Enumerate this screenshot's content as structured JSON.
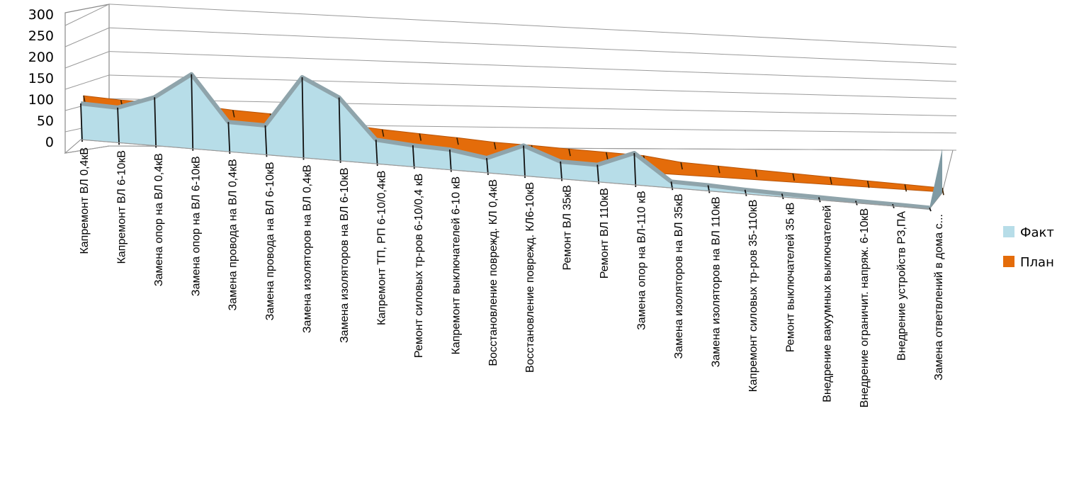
{
  "chart_data": {
    "type": "area",
    "style": "3d",
    "categories": [
      "Капремонт ВЛ 0,4кВ",
      "Капремонт ВЛ 6-10кВ",
      "Замена опор на ВЛ 0,4кВ",
      "Замена опор на ВЛ 6-10кВ",
      "Замена провода на ВЛ 0,4кВ",
      "Замена провода на ВЛ 6-10кВ",
      "Замена изоляторов на ВЛ 0,4кВ",
      "Замена изоляторов на ВЛ 6-10кВ",
      "Капремонт ТП, РП 6-10/0,4кВ",
      "Ремонт силовых тр-ров 6-10/0,4 кВ",
      "Капремонт выключателей  6-10 кВ",
      "Восстановление поврежд. КЛ 0,4кВ",
      "Восстановление поврежд. КЛ6-10кВ",
      "Ремонт ВЛ  35кВ",
      "Ремонт ВЛ  110кВ",
      "Замена опор на  ВЛ-110 кВ",
      "Замена изоляторов на ВЛ 35кВ",
      "Замена изоляторов на ВЛ 110кВ",
      "Капремонт силовых тр-ров 35-110кВ",
      "Ремонт выключателей  35 кВ",
      "Внедрение  вакуумных  выключателей",
      "Внедрение ограничит. напряж. 6-10кВ",
      "Внедрение устройств РЗ,ПА",
      "Замена ответвлений в дома с..."
    ],
    "series": [
      {
        "name": "Факт",
        "color": "#b7dde8",
        "values": [
          102,
          100,
          140,
          218,
          88,
          88,
          245,
          195,
          75,
          68,
          65,
          48,
          100,
          58,
          58,
          110,
          22,
          20,
          15,
          12,
          10,
          8,
          7,
          5
        ]
      },
      {
        "name": "План",
        "color": "#e46c0a",
        "values": [
          112,
          108,
          108,
          110,
          104,
          102,
          90,
          87,
          80,
          76,
          72,
          66,
          65,
          62,
          60,
          58,
          44,
          40,
          36,
          32,
          28,
          24,
          20,
          16
        ]
      }
    ],
    "yticks": [
      "0",
      "50",
      "100",
      "150",
      "200",
      "250",
      "300"
    ],
    "ylim": [
      0,
      300
    ],
    "grid": true,
    "legend_position": "right",
    "title": "",
    "xlabel": "",
    "ylabel": ""
  }
}
